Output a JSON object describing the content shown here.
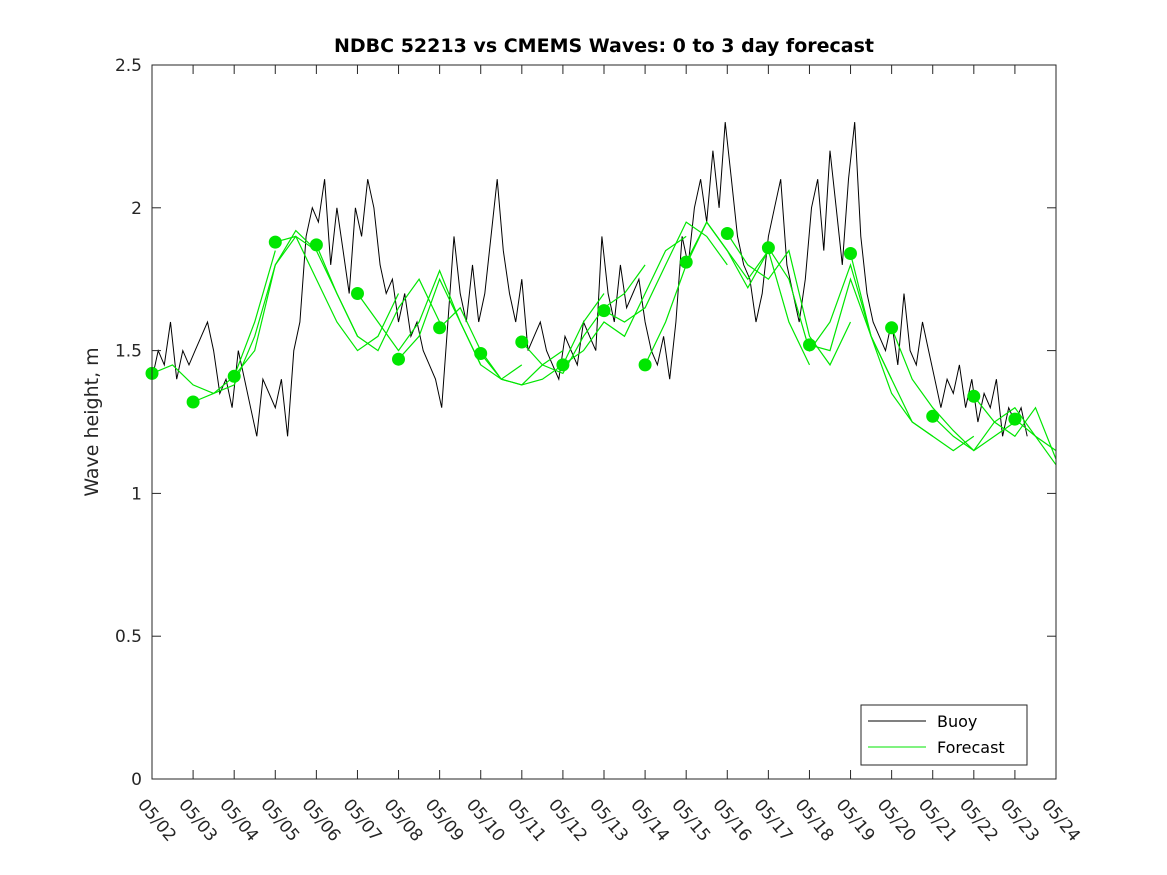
{
  "chart_data": {
    "type": "line",
    "title": "NDBC 52213 vs CMEMS Waves: 0 to 3 day forecast",
    "xlabel": "",
    "ylabel": "Wave height, m",
    "x_ticks": [
      "05/02",
      "05/03",
      "05/04",
      "05/05",
      "05/06",
      "05/07",
      "05/08",
      "05/09",
      "05/10",
      "05/11",
      "05/12",
      "05/13",
      "05/14",
      "05/15",
      "05/16",
      "05/17",
      "05/18",
      "05/19",
      "05/20",
      "05/21",
      "05/22",
      "05/23",
      "05/24"
    ],
    "xlim": [
      "05/02",
      "05/24"
    ],
    "ylim": [
      0,
      2.5
    ],
    "y_ticks": [
      "0",
      "0.5",
      "1",
      "1.5",
      "2",
      "2.5"
    ],
    "grid": false,
    "legend": {
      "position": "bottom-right",
      "entries": [
        "Buoy",
        "Forecast"
      ]
    },
    "colors": {
      "buoy": "#000000",
      "forecast": "#00e600",
      "markers": "#00e600"
    },
    "buoy": {
      "day": [
        0,
        0.15,
        0.3,
        0.45,
        0.6,
        0.75,
        0.9,
        1.05,
        1.2,
        1.35,
        1.5,
        1.65,
        1.8,
        1.95,
        2.1,
        2.25,
        2.4,
        2.55,
        2.7,
        2.85,
        3.0,
        3.15,
        3.3,
        3.45,
        3.6,
        3.75,
        3.9,
        4.05,
        4.2,
        4.35,
        4.5,
        4.65,
        4.8,
        4.95,
        5.1,
        5.25,
        5.4,
        5.55,
        5.7,
        5.85,
        6.0,
        6.15,
        6.3,
        6.45,
        6.6,
        6.75,
        6.9,
        7.05,
        7.2,
        7.35,
        7.5,
        7.65,
        7.8,
        7.95,
        8.1,
        8.25,
        8.4,
        8.55,
        8.7,
        8.85,
        9.0,
        9.15,
        9.3,
        9.45,
        9.6,
        9.75,
        9.9,
        10.05,
        10.2,
        10.35,
        10.5,
        10.65,
        10.8,
        10.95,
        11.1,
        11.25,
        11.4,
        11.55,
        11.7,
        11.85,
        12.0,
        12.15,
        12.3,
        12.45,
        12.6,
        12.75,
        12.9,
        13.05,
        13.2,
        13.35,
        13.5,
        13.65,
        13.8,
        13.95,
        14.1,
        14.25,
        14.4,
        14.55,
        14.7,
        14.85,
        15.0,
        15.15,
        15.3,
        15.45,
        15.6,
        15.75,
        15.9,
        16.05,
        16.2,
        16.35,
        16.5,
        16.65,
        16.8,
        16.95,
        17.1,
        17.25,
        17.4,
        17.55,
        17.7,
        17.85,
        18.0,
        18.15,
        18.3,
        18.45,
        18.6,
        18.75,
        18.9,
        19.05,
        19.2,
        19.35,
        19.5,
        19.65,
        19.8,
        19.95,
        20.1,
        20.25,
        20.4,
        20.55,
        20.7,
        20.85,
        21.0,
        21.15,
        21.3,
        21.45,
        21.6
      ],
      "height": [
        1.4,
        1.5,
        1.45,
        1.6,
        1.4,
        1.5,
        1.45,
        1.5,
        1.55,
        1.6,
        1.5,
        1.35,
        1.4,
        1.3,
        1.5,
        1.4,
        1.3,
        1.2,
        1.4,
        1.35,
        1.3,
        1.4,
        1.2,
        1.5,
        1.6,
        1.9,
        2.0,
        1.95,
        2.1,
        1.8,
        2.0,
        1.85,
        1.7,
        2.0,
        1.9,
        2.1,
        2.0,
        1.8,
        1.7,
        1.75,
        1.6,
        1.7,
        1.55,
        1.6,
        1.5,
        1.45,
        1.4,
        1.3,
        1.6,
        1.9,
        1.7,
        1.6,
        1.8,
        1.6,
        1.7,
        1.9,
        2.1,
        1.85,
        1.7,
        1.6,
        1.75,
        1.5,
        1.55,
        1.6,
        1.5,
        1.45,
        1.4,
        1.55,
        1.5,
        1.45,
        1.6,
        1.55,
        1.5,
        1.9,
        1.7,
        1.6,
        1.8,
        1.65,
        1.7,
        1.75,
        1.6,
        1.5,
        1.45,
        1.55,
        1.4,
        1.6,
        1.9,
        1.8,
        2.0,
        2.1,
        1.95,
        2.2,
        2.0,
        2.3,
        2.1,
        1.9,
        1.8,
        1.75,
        1.6,
        1.7,
        1.9,
        2.0,
        2.1,
        1.8,
        1.7,
        1.6,
        1.75,
        2.0,
        2.1,
        1.85,
        2.2,
        2.0,
        1.8,
        2.1,
        2.3,
        1.9,
        1.7,
        1.6,
        1.55,
        1.5,
        1.6,
        1.45,
        1.7,
        1.5,
        1.45,
        1.6,
        1.5,
        1.4,
        1.3,
        1.4,
        1.35,
        1.45,
        1.3,
        1.4,
        1.25,
        1.35,
        1.3,
        1.4,
        1.2,
        1.3,
        1.25,
        1.3,
        1.2
      ]
    },
    "forecast_runs": [
      {
        "day": [
          0,
          0.5,
          1.0,
          1.5,
          2.0,
          2.5,
          3.0
        ],
        "height": [
          1.42,
          1.45,
          1.38,
          1.35,
          1.41,
          1.6,
          1.85
        ]
      },
      {
        "day": [
          1,
          1.5,
          2.0,
          2.5,
          3.0,
          3.5,
          4.0
        ],
        "height": [
          1.32,
          1.35,
          1.38,
          1.55,
          1.8,
          1.9,
          1.85
        ]
      },
      {
        "day": [
          2,
          2.5,
          3.0,
          3.5,
          4.0,
          4.5,
          5.0
        ],
        "height": [
          1.41,
          1.5,
          1.8,
          1.92,
          1.85,
          1.7,
          1.55
        ]
      },
      {
        "day": [
          3,
          3.5,
          4.0,
          4.5,
          5.0,
          5.5,
          6.0
        ],
        "height": [
          1.88,
          1.9,
          1.75,
          1.6,
          1.5,
          1.55,
          1.7
        ]
      },
      {
        "day": [
          4,
          4.5,
          5.0,
          5.5,
          6.0,
          6.5,
          7.0
        ],
        "height": [
          1.87,
          1.7,
          1.55,
          1.5,
          1.65,
          1.75,
          1.6
        ]
      },
      {
        "day": [
          5,
          5.5,
          6.0,
          6.5,
          7.0,
          7.5,
          8.0
        ],
        "height": [
          1.7,
          1.6,
          1.5,
          1.6,
          1.78,
          1.6,
          1.45
        ]
      },
      {
        "day": [
          6,
          6.5,
          7.0,
          7.5,
          8.0,
          8.5,
          9.0
        ],
        "height": [
          1.47,
          1.55,
          1.75,
          1.6,
          1.45,
          1.4,
          1.45
        ]
      },
      {
        "day": [
          7,
          7.5,
          8.0,
          8.5,
          9.0,
          9.5,
          10.0
        ],
        "height": [
          1.58,
          1.65,
          1.5,
          1.4,
          1.38,
          1.45,
          1.5
        ]
      },
      {
        "day": [
          8,
          8.5,
          9.0,
          9.5,
          10.0,
          10.5,
          11.0
        ],
        "height": [
          1.49,
          1.4,
          1.38,
          1.4,
          1.45,
          1.6,
          1.7
        ]
      },
      {
        "day": [
          9,
          9.5,
          10.0,
          10.5,
          11.0,
          11.5,
          12.0
        ],
        "height": [
          1.53,
          1.45,
          1.42,
          1.55,
          1.65,
          1.7,
          1.8
        ]
      },
      {
        "day": [
          10,
          10.5,
          11.0,
          11.5,
          12.0,
          12.5,
          13.0
        ],
        "height": [
          1.45,
          1.5,
          1.6,
          1.55,
          1.7,
          1.85,
          1.9
        ]
      },
      {
        "day": [
          11,
          11.5,
          12.0,
          12.5,
          13.0,
          13.5,
          14.0
        ],
        "height": [
          1.64,
          1.6,
          1.65,
          1.8,
          1.95,
          1.9,
          1.8
        ]
      },
      {
        "day": [
          12,
          12.5,
          13.0,
          13.5,
          14.0,
          14.5,
          15.0
        ],
        "height": [
          1.45,
          1.6,
          1.8,
          1.95,
          1.85,
          1.75,
          1.85
        ]
      },
      {
        "day": [
          13,
          13.5,
          14.0,
          14.5,
          15.0,
          15.5,
          16.0
        ],
        "height": [
          1.81,
          1.95,
          1.85,
          1.72,
          1.85,
          1.6,
          1.45
        ]
      },
      {
        "day": [
          14,
          14.5,
          15.0,
          15.5,
          16.0,
          16.5,
          17.0
        ],
        "height": [
          1.91,
          1.8,
          1.75,
          1.85,
          1.55,
          1.45,
          1.6
        ]
      },
      {
        "day": [
          15,
          15.5,
          16.0,
          16.5,
          17.0,
          17.5,
          18.0
        ],
        "height": [
          1.86,
          1.75,
          1.5,
          1.6,
          1.8,
          1.55,
          1.4
        ]
      },
      {
        "day": [
          16,
          16.5,
          17.0,
          17.5,
          18.0,
          18.5,
          19.0
        ],
        "height": [
          1.52,
          1.5,
          1.75,
          1.55,
          1.35,
          1.25,
          1.2
        ]
      },
      {
        "day": [
          17,
          17.5,
          18.0,
          18.5,
          19.0,
          19.5,
          20.0
        ],
        "height": [
          1.84,
          1.55,
          1.4,
          1.25,
          1.2,
          1.15,
          1.2
        ]
      },
      {
        "day": [
          18,
          18.5,
          19.0,
          19.5,
          20.0,
          20.5,
          21.0
        ],
        "height": [
          1.58,
          1.4,
          1.3,
          1.22,
          1.15,
          1.2,
          1.25
        ]
      },
      {
        "day": [
          19,
          19.5,
          20.0,
          20.5,
          21.0,
          21.5,
          22.0
        ],
        "height": [
          1.27,
          1.2,
          1.15,
          1.25,
          1.3,
          1.2,
          1.15
        ]
      },
      {
        "day": [
          20,
          20.5,
          21.0,
          21.5,
          22.0
        ],
        "height": [
          1.34,
          1.25,
          1.2,
          1.3,
          1.12
        ]
      },
      {
        "day": [
          21,
          21.5,
          22.0
        ],
        "height": [
          1.26,
          1.2,
          1.1
        ]
      }
    ],
    "forecast_markers": {
      "day": [
        0,
        1,
        2,
        3,
        4,
        5,
        6,
        7,
        8,
        9,
        10,
        11,
        12,
        13,
        14,
        15,
        16,
        17,
        18,
        19,
        20,
        21
      ],
      "height": [
        1.42,
        1.32,
        1.41,
        1.88,
        1.87,
        1.7,
        1.47,
        1.58,
        1.49,
        1.53,
        1.45,
        1.64,
        1.45,
        1.81,
        1.91,
        1.86,
        1.52,
        1.84,
        1.58,
        1.27,
        1.34,
        1.26
      ]
    }
  }
}
